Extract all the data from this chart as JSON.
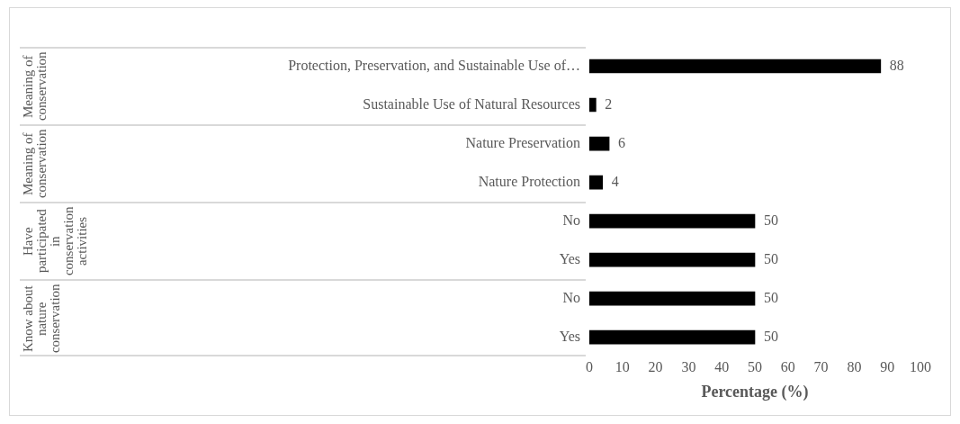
{
  "chart_data": {
    "type": "bar",
    "orientation": "horizontal",
    "xlabel": "Percentage (%)",
    "categories": [
      "Protection, Preservation, and Sustainable Use of…",
      "Sustainable Use of Natural Resources",
      "Nature Preservation",
      "Nature Protection",
      "No",
      "Yes",
      "No",
      "Yes"
    ],
    "values": [
      88,
      2,
      6,
      4,
      50,
      50,
      50,
      50
    ],
    "color": "#000000",
    "xlim": [
      0,
      100
    ],
    "xticks": [
      0,
      10,
      20,
      30,
      40,
      50,
      60,
      70,
      80,
      90,
      100
    ],
    "grid": false,
    "legend": false,
    "data_labels": true,
    "annotations": [
      "Meaning of conservation",
      "Meaning of conservation",
      "Have participated in conservation activities",
      "Know about nature conservation"
    ]
  }
}
